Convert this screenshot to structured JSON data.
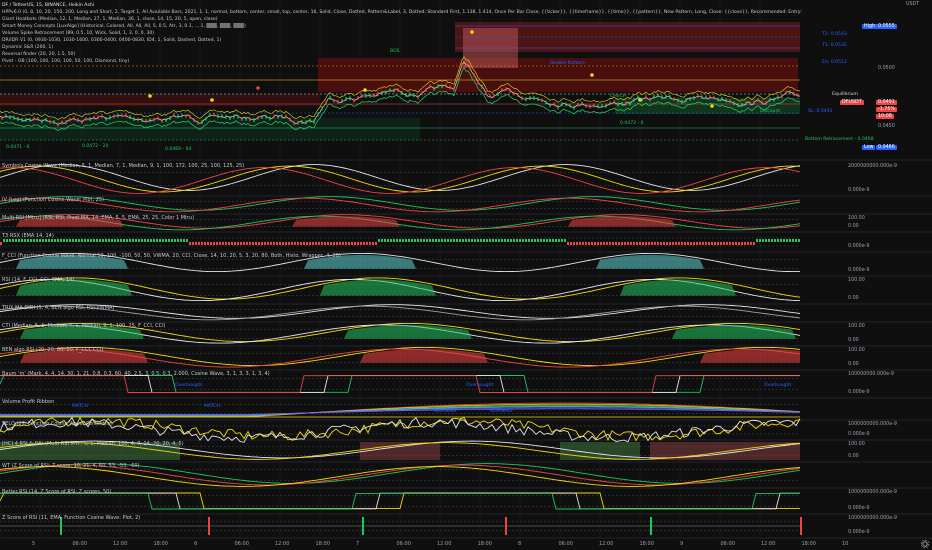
{
  "header": {
    "symbol": "DF / TetherUS, 15, BINANCE, Heikin Ashi",
    "currency": "USDT",
    "indicator_lines": [
      "HPPv6.0 (0, 8, 10, 20, 150, 200, Long and Short, 2, Target 1, All Available Bars, 2021, 1, 1, normal, bottom, center, small, top, center, 16, Solid, Close, Dotted, Pattern&Label, 3, Dotted, Standard First, 1.138, 1.414, Once Per Bar Close, {{ticker}}, {{timeframe}}, {{time}}, {{pattern}}, New Pattern, Long, Close: {{close}}, Recommended: Entry: {{entry}}, T1: {{target1}}, T2: {{target2}}, SL: {{stoploss}}",
      "Giant Heatbots (Median, 12, 1, Median, 27, 1, Median, 36, 1, close, 14, 15, 20, 5, open, close)",
      "Smart Money Concepts [LuxAlgo] (Historical, Colored, All, All, All, 5, 0.5, Atr, 3, 0.1, .., 1, ▒▒▒, ▒▒▒, ▒▒▒)",
      "Volume Spike Retracement (89, 0.5, 10, Wick, Solid, 1, 3, 0, 0, 30)",
      "DR/IDR V1 (0, 0930-1030, 1030-1600, 0300-0400, 0400-0830, ID4, 1, Solid, Dashed, Dotted, 1)",
      "Dynamic S&R (200, 1)",
      "Reversal finder (20, 20, 1.5, 50)",
      "Pivot - OB (100, 100, 100, 100, 50, 100, Diamond, tiny)"
    ]
  },
  "price_axis": {
    "high_label": "High",
    "high_value": "0.0555",
    "targets": [
      "T2: 0.0543",
      "T1: 0.0532",
      "En: 0.0512"
    ],
    "levels": [
      "0.0500",
      "0.0450"
    ],
    "last_symbol": "DFUSDT",
    "last_value": "0.0491",
    "last_change": "-1.75%",
    "countdown": "10:08",
    "low_label": "Low",
    "low_value": "0.0466",
    "equilibrium": "Equilibrium",
    "sl_label": "SL: 0.0491",
    "bottom_retracement": "Bottom Retracement - 0.0468"
  },
  "main_annotations": {
    "double_bottom": "Double Bottom",
    "discount": "Discount",
    "bos": "BOS",
    "choch": "CHoCH",
    "left_prices": [
      "0.0471 - 6",
      "0.0472 - 20",
      "0.0469 - 64",
      "0.0472 - 6"
    ]
  },
  "panes": [
    {
      "label": "Symbols Cosine Wave (Median, 5, 1, Median, 7, 1, Median, 9, 1, 100, 172, 100, 25, 100, 125, 25)",
      "top_value": "2000000000.000e-9",
      "bottom_value": "0.000e-9"
    },
    {
      "label": "IV (Log) (Function Cosine Wave: Plot, 25)",
      "top_value": "",
      "bottom_value": ""
    },
    {
      "label": "Multi RSI [Mtru] (RSI, RSI, Pivot MA, 14, EMA, 5, 5, EMA, 25, 25, Color 1 Mtru)",
      "top_value": "100.00",
      "bottom_value": "0.00"
    },
    {
      "label": "T3 RSX (EMA 14, 14)",
      "top_value": "",
      "bottom_value": "0.000e-9"
    },
    {
      "label": "F_CCI (Function Cosine Wave: Normal 50, 100, -100, 50, 50, VWMA, 20, CCI, Close, 14, 10, 20, 5, 3, 20, 80, Both, Histo, Wrapper, 4, 20)",
      "top_value": "",
      "bottom_value": "0.000e-9"
    },
    {
      "label": "RSI (14, F_CCI, CCI, SMA, 14)",
      "top_value": "100.00",
      "bottom_value": "0.00"
    },
    {
      "label": "TRIX MA DIDI (5, 4, BEN algo RSI, RSI-VWMA)",
      "top_value": "",
      "bottom_value": ""
    },
    {
      "label": "CTI (Median, 5, 1, Median, 7, 1, Median, 9, 1, 100, 25, F_CCI, CCI)",
      "top_value": "100.00",
      "bottom_value": "0.00"
    },
    {
      "label": "BEN algo RSI (20, 20, 80, 20, F_CCI, CCI)",
      "top_value": "100.00",
      "bottom_value": "0.00"
    },
    {
      "label": "Baum 'm' (Mark, 4, 4, 14, 30, 1, 21, 0.8, 0.3, 60, 40, 2.5, 3, 0.5, 0.3, 2.000, Cosine Wave, 3, 1, 3, 3, 1, 3, 4)",
      "top_value": "100000000.000e-9",
      "bottom_value": "0.000e-9"
    },
    {
      "label": "Volume Profit Ribbon",
      "top_value": "",
      "bottom_value": ""
    },
    {
      "label": "SELO (27, Function Cosine Wave: Percentile)",
      "top_value": "1000000000.000e-9",
      "bottom_value": "0.000e-9"
    },
    {
      "label": "[HC] 4 RSI & DIV (Multi RSI MTF, 5, 1, Median, 100, 4, 7, 14, 20, 20, 4, 5)",
      "top_value": "100.00",
      "bottom_value": "0.00"
    },
    {
      "label": "WT (Z Score of RSI: Z score, 10, 21, 4, 60, 53, -53, -60)",
      "top_value": "",
      "bottom_value": ""
    },
    {
      "label": "Better RSI (14, Z Score of RSI: Z scores, 50)",
      "top_value": "1000000000.000e-9",
      "bottom_value": "0.000e-9"
    },
    {
      "label": "Z Score of RSI (11, EMA, Function Cosine Wave: Plot, 2)",
      "top_value": "1000000000.000e-9",
      "bottom_value": "0.000e-9"
    }
  ],
  "pane_annotations": {
    "overbought": "Overbought",
    "match": "MATCH",
    "warning": "WARNING"
  },
  "time_axis": [
    "5",
    "06:00",
    "12:00",
    "18:00",
    "6",
    "06:00",
    "12:00",
    "18:00",
    "7",
    "06:00",
    "12:00",
    "18:00",
    "8",
    "06:00",
    "12:00",
    "18:00",
    "9",
    "06:00",
    "12:00",
    "18:00",
    "10"
  ],
  "colors": {
    "background": "#0f0f0f",
    "bull": "#22c55e",
    "bear": "#ef4444",
    "accent_blue": "#2962ff",
    "yellow": "#f5d90a"
  }
}
